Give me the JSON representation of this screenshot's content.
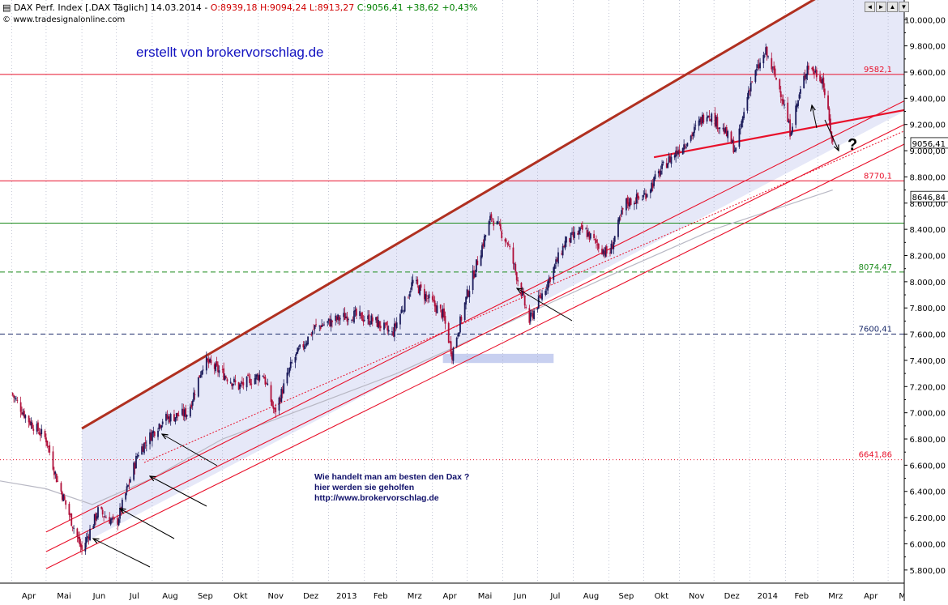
{
  "header": {
    "instrument": "DAX Perf. Index [.DAX  Täglich]",
    "date": "14.03.2014",
    "ohlc": "O:8939,18 H:9094,24 L:8913,27",
    "close_change": "C:9056,41 +38,62 +0,43%",
    "source": "www.tradesignalonline.com"
  },
  "window_buttons": [
    "◄",
    "►",
    "▲",
    "▼"
  ],
  "colors": {
    "background": "#ffffff",
    "channel_fill": "#e6e8f8",
    "trend_line": "#e8102a",
    "upper_channel": "#b03020",
    "support_green": "#1a8a1a",
    "support_navy": "#1a2a6a",
    "candle_up": "#1a1a5a",
    "candle_down": "#b0103a",
    "watermark": "#1010c0"
  },
  "chart_data": {
    "type": "candlestick",
    "title": "erstellt von brokervorschlag.de",
    "y_axis": {
      "min": 5700,
      "max": 10150,
      "ticks": [
        5800,
        6000,
        6200,
        6400,
        6600,
        6800,
        7000,
        7200,
        7400,
        7600,
        7800,
        8000,
        8200,
        8400,
        8600,
        8800,
        9000,
        9200,
        9400,
        9600,
        9800,
        10000
      ]
    },
    "x_axis": {
      "labels": [
        "Apr",
        "Mai",
        "Jun",
        "Jul",
        "Aug",
        "Sep",
        "Okt",
        "Nov",
        "Dez",
        "2013",
        "Feb",
        "Mrz",
        "Apr",
        "Mai",
        "Jun",
        "Jul",
        "Aug",
        "Sep",
        "Okt",
        "Nov",
        "Dez",
        "2014",
        "Feb",
        "Mrz",
        "Apr",
        "Mai"
      ]
    },
    "series_key_points": [
      [
        "2012-04-01",
        7150
      ],
      [
        "2012-04-15",
        6950
      ],
      [
        "2012-05-01",
        6800
      ],
      [
        "2012-05-10",
        6500
      ],
      [
        "2012-06-01",
        5950
      ],
      [
        "2012-06-15",
        6250
      ],
      [
        "2012-07-01",
        6150
      ],
      [
        "2012-07-20",
        6700
      ],
      [
        "2012-08-10",
        6950
      ],
      [
        "2012-09-01",
        7000
      ],
      [
        "2012-09-15",
        7400
      ],
      [
        "2012-10-01",
        7300
      ],
      [
        "2012-10-15",
        7200
      ],
      [
        "2012-11-05",
        7300
      ],
      [
        "2012-11-15",
        7000
      ],
      [
        "2012-12-01",
        7400
      ],
      [
        "2012-12-20",
        7650
      ],
      [
        "2013-01-20",
        7750
      ],
      [
        "2013-02-10",
        7700
      ],
      [
        "2013-02-25",
        7600
      ],
      [
        "2013-03-15",
        8000
      ],
      [
        "2013-03-25",
        7900
      ],
      [
        "2013-04-10",
        7750
      ],
      [
        "2013-04-18",
        7450
      ],
      [
        "2013-05-01",
        7900
      ],
      [
        "2013-05-22",
        8500
      ],
      [
        "2013-06-05",
        8300
      ],
      [
        "2013-06-24",
        7700
      ],
      [
        "2013-07-10",
        8000
      ],
      [
        "2013-07-25",
        8300
      ],
      [
        "2013-08-10",
        8400
      ],
      [
        "2013-08-20",
        8300
      ],
      [
        "2013-09-01",
        8200
      ],
      [
        "2013-09-15",
        8600
      ],
      [
        "2013-10-01",
        8650
      ],
      [
        "2013-10-20",
        8900
      ],
      [
        "2013-11-10",
        9100
      ],
      [
        "2013-11-25",
        9300
      ],
      [
        "2013-12-10",
        9150
      ],
      [
        "2013-12-20",
        9000
      ],
      [
        "2014-01-01",
        9500
      ],
      [
        "2014-01-15",
        9750
      ],
      [
        "2014-01-28",
        9450
      ],
      [
        "2014-02-05",
        9150
      ],
      [
        "2014-02-20",
        9650
      ],
      [
        "2014-03-05",
        9550
      ],
      [
        "2014-03-14",
        9056
      ]
    ],
    "horizontal_levels": [
      {
        "value": 9582.1,
        "label": "9582,1",
        "style": "solid",
        "color": "#e8102a"
      },
      {
        "value": 8770.1,
        "label": "8770,1",
        "style": "solid",
        "color": "#e8102a"
      },
      {
        "value": 8447,
        "label": "",
        "style": "solid",
        "color": "#1a8a1a"
      },
      {
        "value": 8074.47,
        "label": "8074,47",
        "style": "dashed",
        "color": "#1a8a1a"
      },
      {
        "value": 7600.41,
        "label": "7600,41",
        "style": "dashed",
        "color": "#1a2a6a"
      },
      {
        "value": 6641.86,
        "label": "6641,86",
        "style": "dotted",
        "color": "#e8102a"
      }
    ],
    "price_markers": [
      {
        "value": 9056.41,
        "label": "9056,41"
      },
      {
        "value": 8646.84,
        "label": "8646,84"
      }
    ],
    "annotations": {
      "watermark": "erstellt von brokervorschlag.de",
      "note_lines": [
        "Wie handelt man am besten  den Dax ?",
        "hier werden sie geholfen",
        "http://www.brokervorschlag.de"
      ],
      "question_mark": "?"
    }
  }
}
